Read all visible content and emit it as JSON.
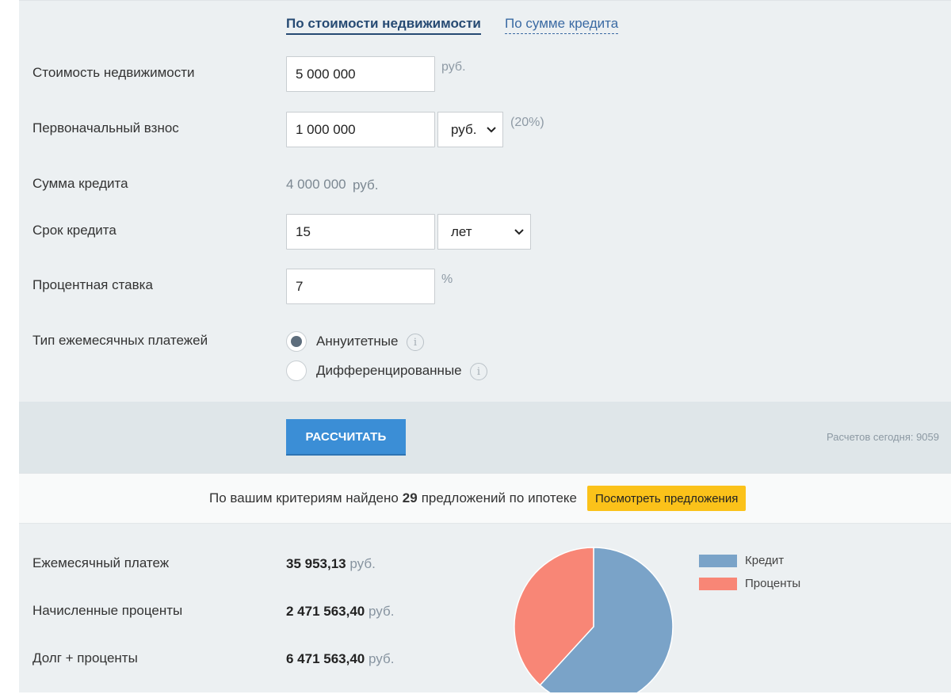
{
  "tabs": {
    "by_property_value": "По стоимости недвижимости",
    "by_loan_amount": "По сумме кредита"
  },
  "form": {
    "property_value": {
      "label": "Стоимость недвижимости",
      "value": "5 000 000",
      "unit": "руб."
    },
    "down_payment": {
      "label": "Первоначальный взнос",
      "value": "1 000 000",
      "unit_selected": "руб.",
      "percent": "(20%)"
    },
    "loan_amount": {
      "label": "Сумма кредита",
      "value": "4 000 000",
      "unit": "руб."
    },
    "loan_term": {
      "label": "Срок кредита",
      "value": "15",
      "unit_selected": "лет"
    },
    "interest_rate": {
      "label": "Процентная ставка",
      "value": "7",
      "unit": "%"
    },
    "payment_type": {
      "label": "Тип ежемесячных платежей",
      "options": [
        {
          "label": "Аннуитетные",
          "selected": true
        },
        {
          "label": "Дифференцированные",
          "selected": false
        }
      ]
    }
  },
  "actions": {
    "calculate_label": "РАССЧИТАТЬ",
    "calculations_today": "Расчетов сегодня: 9059"
  },
  "offers": {
    "text_before": "По вашим критериям найдено",
    "count": "29",
    "text_after": "предложений по ипотеке",
    "button_label": "Посмотреть предложения"
  },
  "results": {
    "monthly_payment": {
      "label": "Ежемесячный платеж",
      "value": "35 953,13",
      "unit": "руб."
    },
    "accrued_interest": {
      "label": "Начисленные проценты",
      "value": "2 471 563,40",
      "unit": "руб."
    },
    "total": {
      "label": "Долг + проценты",
      "value": "6 471 563,40",
      "unit": "руб."
    }
  },
  "chart_data": {
    "type": "pie",
    "slices": [
      {
        "name": "Кредит",
        "value": 4000000,
        "color": "#7aa3c8"
      },
      {
        "name": "Проценты",
        "value": 2471563.4,
        "color": "#f88676"
      }
    ],
    "legend": [
      "Кредит",
      "Проценты"
    ],
    "legend_placement": "right"
  },
  "icons": {
    "info": "info-icon",
    "chevron": "chevron-down-icon"
  }
}
